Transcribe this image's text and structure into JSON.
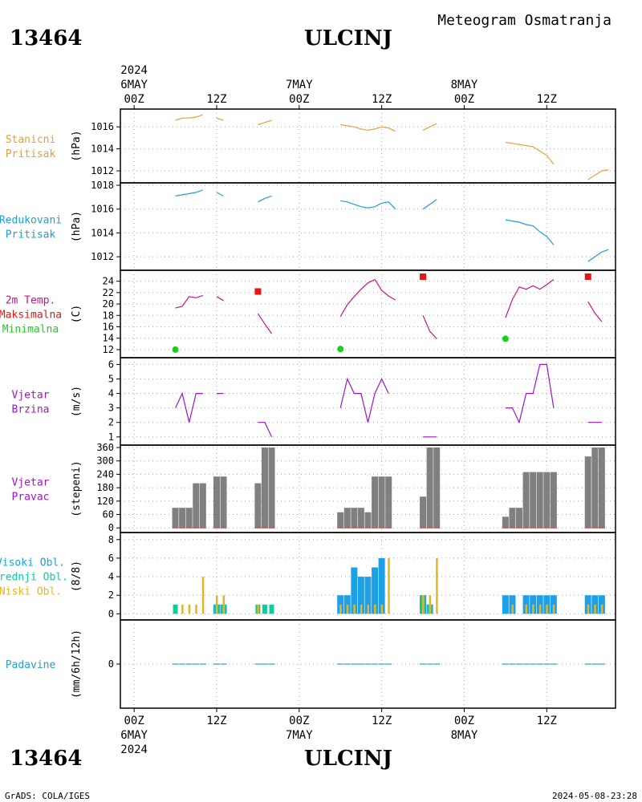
{
  "header": {
    "station_id": "13464",
    "station_name": "ULCINJ",
    "product": "Meteogram Osmatranja"
  },
  "footer": {
    "station_id": "13464",
    "station_name": "ULCINJ",
    "credit": "GrADS: COLA/IGES",
    "timestamp": "2024-05-08-23:28"
  },
  "time_axis": {
    "year": "2024",
    "ticks_top": [
      {
        "h": 0,
        "hour": "00Z",
        "date": "6MAY",
        "year": "2024"
      },
      {
        "h": 12,
        "hour": "12Z"
      },
      {
        "h": 24,
        "hour": "00Z",
        "date": "7MAY"
      },
      {
        "h": 36,
        "hour": "12Z"
      },
      {
        "h": 48,
        "hour": "00Z",
        "date": "8MAY"
      },
      {
        "h": 60,
        "hour": "12Z"
      }
    ],
    "ticks_bottom": [
      {
        "h": 0,
        "hour": "00Z",
        "date": "6MAY",
        "year": "2024"
      },
      {
        "h": 12,
        "hour": "12Z"
      },
      {
        "h": 24,
        "hour": "00Z",
        "date": "7MAY"
      },
      {
        "h": 36,
        "hour": "12Z"
      },
      {
        "h": 48,
        "hour": "00Z",
        "date": "8MAY"
      },
      {
        "h": 60,
        "hour": "12Z"
      }
    ]
  },
  "colors": {
    "stanicni": "#e6a03c",
    "redukovani": "#1ea0d2",
    "temp": "#c8148c",
    "tmax": "#e61414",
    "tmin": "#14d214",
    "wind": "#a014c8",
    "winddir": "#808080",
    "visoki": "#1ea0e6",
    "srednji": "#14c8a0",
    "niski": "#e6b428",
    "padavine": "#28a0c8"
  },
  "chart_data": [
    {
      "type": "line",
      "name": "stanicni-pritisak",
      "label_lines": [
        "Stanicni",
        "Pritisak"
      ],
      "label_color": "#e6a03c",
      "ylabel": "(hPa)",
      "ylim": [
        1011.2,
        1017.4
      ],
      "yticks": [
        1012,
        1014,
        1016
      ],
      "segments": [
        [
          [
            6,
            1016.6
          ],
          [
            7,
            1016.8
          ],
          [
            8,
            1016.8
          ],
          [
            9,
            1016.9
          ],
          [
            10,
            1017.1
          ]
        ],
        [
          [
            12,
            1016.8
          ],
          [
            13,
            1016.6
          ]
        ],
        [
          [
            18,
            1016.2
          ],
          [
            19,
            1016.4
          ],
          [
            20,
            1016.6
          ]
        ],
        [
          [
            30,
            1016.2
          ],
          [
            31,
            1016.1
          ],
          [
            32,
            1016.0
          ],
          [
            33,
            1015.8
          ],
          [
            34,
            1015.7
          ],
          [
            35,
            1015.8
          ],
          [
            36,
            1016.0
          ],
          [
            37,
            1015.9
          ],
          [
            38,
            1015.6
          ]
        ],
        [
          [
            42,
            1015.7
          ],
          [
            43,
            1016.0
          ],
          [
            44,
            1016.3
          ]
        ],
        [
          [
            54,
            1014.6
          ],
          [
            55,
            1014.5
          ],
          [
            56,
            1014.4
          ],
          [
            57,
            1014.3
          ],
          [
            58,
            1014.2
          ],
          [
            59,
            1013.8
          ],
          [
            60,
            1013.4
          ],
          [
            61,
            1012.6
          ]
        ],
        [
          [
            66,
            1011.2
          ],
          [
            67,
            1011.6
          ],
          [
            68,
            1012.0
          ],
          [
            69,
            1012.1
          ]
        ]
      ]
    },
    {
      "type": "line",
      "name": "redukovani-pritisak",
      "label_lines": [
        "Redukovani",
        "Pritisak"
      ],
      "label_color": "#1ea0d2",
      "ylabel": "(hPa)",
      "ylim": [
        1011.2,
        1018.0
      ],
      "yticks": [
        1012,
        1014,
        1016,
        1018
      ],
      "segments": [
        [
          [
            6,
            1017.1
          ],
          [
            7,
            1017.2
          ],
          [
            8,
            1017.3
          ],
          [
            9,
            1017.4
          ],
          [
            10,
            1017.6
          ]
        ],
        [
          [
            12,
            1017.4
          ],
          [
            13,
            1017.1
          ]
        ],
        [
          [
            18,
            1016.6
          ],
          [
            19,
            1016.9
          ],
          [
            20,
            1017.1
          ]
        ],
        [
          [
            30,
            1016.7
          ],
          [
            31,
            1016.6
          ],
          [
            32,
            1016.4
          ],
          [
            33,
            1016.2
          ],
          [
            34,
            1016.1
          ],
          [
            35,
            1016.2
          ],
          [
            36,
            1016.5
          ],
          [
            37,
            1016.6
          ],
          [
            38,
            1016.0
          ]
        ],
        [
          [
            42,
            1016.0
          ],
          [
            43,
            1016.4
          ],
          [
            44,
            1016.8
          ]
        ],
        [
          [
            54,
            1015.1
          ],
          [
            55,
            1015.0
          ],
          [
            56,
            1014.9
          ],
          [
            57,
            1014.7
          ],
          [
            58,
            1014.6
          ],
          [
            59,
            1014.1
          ],
          [
            60,
            1013.7
          ],
          [
            61,
            1013.0
          ]
        ],
        [
          [
            66,
            1011.6
          ],
          [
            67,
            1012.0
          ],
          [
            68,
            1012.4
          ],
          [
            69,
            1012.6
          ]
        ]
      ]
    },
    {
      "type": "line",
      "name": "temperatura",
      "label_lines": [
        "2m Temp.",
        "Maksimalna",
        "Minimalna"
      ],
      "label_colors": [
        "#c8148c",
        "#e61414",
        "#14d214"
      ],
      "ylabel": "(C)",
      "ylim": [
        11,
        25.5
      ],
      "yticks": [
        12,
        14,
        16,
        18,
        20,
        22,
        24
      ],
      "segments": [
        [
          [
            6,
            19.3
          ],
          [
            7,
            19.6
          ],
          [
            8,
            21.3
          ],
          [
            9,
            21.1
          ],
          [
            10,
            21.5
          ]
        ],
        [
          [
            12,
            21.3
          ],
          [
            13,
            20.6
          ]
        ],
        [
          [
            18,
            18.3
          ],
          [
            19,
            16.5
          ],
          [
            20,
            14.8
          ]
        ],
        [
          [
            30,
            17.8
          ],
          [
            31,
            19.9
          ],
          [
            32,
            21.3
          ],
          [
            33,
            22.6
          ],
          [
            34,
            23.7
          ],
          [
            35,
            24.3
          ],
          [
            36,
            22.4
          ],
          [
            37,
            21.4
          ],
          [
            38,
            20.7
          ]
        ],
        [
          [
            42,
            18.0
          ],
          [
            43,
            15.2
          ],
          [
            44,
            13.9
          ]
        ],
        [
          [
            54,
            17.6
          ],
          [
            55,
            20.8
          ],
          [
            56,
            23.0
          ],
          [
            57,
            22.6
          ],
          [
            58,
            23.2
          ],
          [
            59,
            22.6
          ],
          [
            60,
            23.4
          ],
          [
            61,
            24.3
          ]
        ],
        [
          [
            66,
            20.4
          ],
          [
            67,
            18.4
          ],
          [
            68,
            16.9
          ]
        ]
      ],
      "tmax": [
        [
          18,
          22.2
        ],
        [
          42,
          24.8
        ],
        [
          66,
          24.8
        ]
      ],
      "tmin": [
        [
          6,
          12.0
        ],
        [
          30,
          12.1
        ],
        [
          54,
          13.9
        ]
      ]
    },
    {
      "type": "line",
      "name": "vjetar-brzina",
      "label_lines": [
        "Vjetar",
        "Brzina"
      ],
      "label_color": "#a014c8",
      "ylabel": "(m/s)",
      "ylim": [
        0.6,
        6.3
      ],
      "yticks": [
        1,
        2,
        3,
        4,
        5,
        6
      ],
      "segments": [
        [
          [
            6,
            3
          ],
          [
            7,
            4
          ],
          [
            8,
            2
          ],
          [
            9,
            4
          ],
          [
            10,
            4
          ]
        ],
        [
          [
            12,
            4
          ],
          [
            13,
            4
          ]
        ],
        [
          [
            18,
            2
          ],
          [
            19,
            2
          ],
          [
            20,
            1
          ]
        ],
        [
          [
            30,
            3
          ],
          [
            31,
            5
          ],
          [
            32,
            4
          ],
          [
            33,
            4
          ],
          [
            34,
            2
          ],
          [
            35,
            4
          ],
          [
            36,
            5
          ],
          [
            37,
            4
          ]
        ],
        [
          [
            42,
            1
          ],
          [
            43,
            1
          ],
          [
            44,
            1
          ]
        ],
        [
          [
            54,
            3
          ],
          [
            55,
            3
          ],
          [
            56,
            2
          ],
          [
            57,
            4
          ],
          [
            58,
            4
          ],
          [
            59,
            6
          ],
          [
            60,
            6
          ],
          [
            61,
            3
          ]
        ],
        [
          [
            66,
            2
          ],
          [
            67,
            2
          ],
          [
            68,
            2
          ]
        ]
      ]
    },
    {
      "type": "bar",
      "name": "vjetar-pravac",
      "label_lines": [
        "Vjetar",
        "Pravac"
      ],
      "label_color": "#a014c8",
      "ylabel": "(stepeni)",
      "ylim": [
        -10,
        360
      ],
      "yticks": [
        0,
        60,
        120,
        180,
        240,
        300,
        360
      ],
      "bars": [
        [
          6,
          90
        ],
        [
          7,
          90
        ],
        [
          8,
          90
        ],
        [
          9,
          200
        ],
        [
          10,
          200
        ],
        [
          12,
          230
        ],
        [
          13,
          230
        ],
        [
          18,
          200
        ],
        [
          19,
          360
        ],
        [
          20,
          360
        ],
        [
          30,
          70
        ],
        [
          31,
          90
        ],
        [
          32,
          90
        ],
        [
          33,
          90
        ],
        [
          34,
          70
        ],
        [
          35,
          230
        ],
        [
          36,
          230
        ],
        [
          37,
          230
        ],
        [
          42,
          140
        ],
        [
          43,
          360
        ],
        [
          44,
          360
        ],
        [
          54,
          50
        ],
        [
          55,
          90
        ],
        [
          56,
          90
        ],
        [
          57,
          250
        ],
        [
          58,
          250
        ],
        [
          59,
          250
        ],
        [
          60,
          250
        ],
        [
          61,
          250
        ],
        [
          66,
          320
        ],
        [
          67,
          360
        ],
        [
          68,
          360
        ]
      ]
    },
    {
      "type": "bar",
      "name": "oblacnost",
      "label_lines": [
        "Visoki Obl.",
        "Srednji Obl.",
        "Niski Obl."
      ],
      "label_colors": [
        "#1ea0d2",
        "#14c8a0",
        "#e6b428"
      ],
      "ylabel": "(8/8)",
      "ylim": [
        -0.4,
        8.5
      ],
      "yticks": [
        0,
        2,
        4,
        6,
        8
      ],
      "visoki": [
        [
          12,
          1
        ],
        [
          13,
          1
        ],
        [
          30,
          2
        ],
        [
          31,
          2
        ],
        [
          32,
          5
        ],
        [
          33,
          4
        ],
        [
          34,
          4
        ],
        [
          35,
          5
        ],
        [
          36,
          6
        ],
        [
          42,
          2
        ],
        [
          43,
          1
        ],
        [
          54,
          2
        ],
        [
          55,
          2
        ],
        [
          57,
          2
        ],
        [
          58,
          2
        ],
        [
          59,
          2
        ],
        [
          60,
          2
        ],
        [
          61,
          2
        ],
        [
          66,
          2
        ],
        [
          67,
          2
        ],
        [
          68,
          2
        ]
      ],
      "srednji": [
        [
          6,
          1
        ],
        [
          12,
          1
        ],
        [
          13,
          1
        ],
        [
          18,
          1
        ],
        [
          19,
          1
        ],
        [
          20,
          1
        ],
        [
          42,
          2
        ],
        [
          43,
          1
        ]
      ],
      "niski": [
        [
          7,
          1
        ],
        [
          8,
          1
        ],
        [
          9,
          1
        ],
        [
          10,
          4
        ],
        [
          12,
          2
        ],
        [
          13,
          2
        ],
        [
          18,
          1
        ],
        [
          30,
          1
        ],
        [
          31,
          1
        ],
        [
          32,
          1
        ],
        [
          33,
          1
        ],
        [
          34,
          1
        ],
        [
          35,
          1
        ],
        [
          36,
          1
        ],
        [
          37,
          6
        ],
        [
          42,
          2
        ],
        [
          43,
          2
        ],
        [
          44,
          6
        ],
        [
          55,
          1
        ],
        [
          57,
          1
        ],
        [
          58,
          1
        ],
        [
          59,
          1
        ],
        [
          60,
          1
        ],
        [
          61,
          1
        ],
        [
          66,
          1
        ],
        [
          67,
          1
        ],
        [
          68,
          1
        ]
      ]
    },
    {
      "type": "bar",
      "name": "padavine",
      "label_lines": [
        "Padavine"
      ],
      "label_color": "#28a0c8",
      "ylabel": "(mm/6h/12h)",
      "ylim": [
        -1,
        1
      ],
      "yticks": [
        0
      ],
      "values": [
        [
          6,
          0
        ],
        [
          7,
          0
        ],
        [
          8,
          0
        ],
        [
          9,
          0
        ],
        [
          10,
          0
        ],
        [
          12,
          0
        ],
        [
          13,
          0
        ],
        [
          18,
          0
        ],
        [
          19,
          0
        ],
        [
          20,
          0
        ],
        [
          30,
          0
        ],
        [
          31,
          0
        ],
        [
          32,
          0
        ],
        [
          33,
          0
        ],
        [
          34,
          0
        ],
        [
          35,
          0
        ],
        [
          36,
          0
        ],
        [
          37,
          0
        ],
        [
          42,
          0
        ],
        [
          43,
          0
        ],
        [
          44,
          0
        ],
        [
          54,
          0
        ],
        [
          55,
          0
        ],
        [
          56,
          0
        ],
        [
          57,
          0
        ],
        [
          58,
          0
        ],
        [
          59,
          0
        ],
        [
          60,
          0
        ],
        [
          61,
          0
        ],
        [
          66,
          0
        ],
        [
          67,
          0
        ],
        [
          68,
          0
        ]
      ]
    }
  ]
}
